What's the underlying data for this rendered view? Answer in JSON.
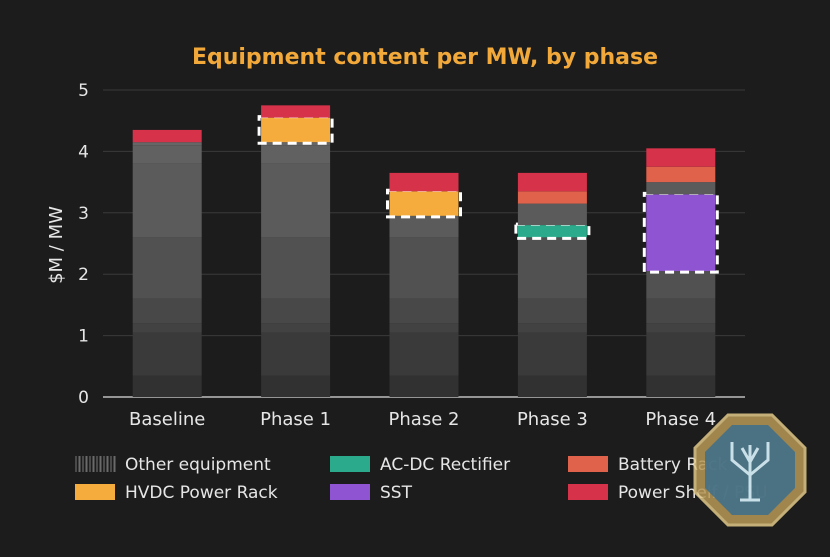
{
  "chart_data": {
    "type": "bar",
    "stacked": true,
    "title": "Equipment content per MW, by phase",
    "ylabel": "$M / MW",
    "xlabel": "",
    "ylim": [
      0,
      5
    ],
    "yticks": [
      "0",
      "1",
      "2",
      "3",
      "4",
      "5"
    ],
    "categories": [
      "Baseline",
      "Phase 1",
      "Phase 2",
      "Phase 3",
      "Phase 4"
    ],
    "grid": true,
    "legend_position": "bottom",
    "series": [
      {
        "name": "Other equipment",
        "color": "#5a5a5a",
        "values": [
          4.15,
          4.15,
          2.95,
          2.6,
          2.05
        ]
      },
      {
        "name": "AC-DC Rectifier",
        "color": "#2bab8c",
        "values": [
          0,
          0,
          0,
          0.2,
          0
        ]
      },
      {
        "name": "SST",
        "color": "#8e54d1",
        "values": [
          0,
          0,
          0,
          0,
          1.25
        ]
      },
      {
        "name": "HVDC Power Rack",
        "color": "#f5ac3d",
        "values": [
          0,
          0.4,
          0.4,
          0,
          0
        ]
      },
      {
        "name": "Other equipment",
        "color": "#5a5a5a",
        "values": [
          0,
          0,
          0,
          0.35,
          0.2
        ]
      },
      {
        "name": "Battery Rack",
        "color": "#e0624a",
        "values": [
          0,
          0,
          0,
          0.2,
          0.25
        ]
      },
      {
        "name": "Power Shelf / PSU",
        "color": "#d6324a",
        "values": [
          0.2,
          0.2,
          0.3,
          0.3,
          0.3
        ]
      }
    ],
    "highlighted_series": [
      "HVDC Power Rack",
      "AC-DC Rectifier",
      "SST"
    ],
    "legend": [
      {
        "name": "Other equipment",
        "color": "#5a5a5a"
      },
      {
        "name": "AC-DC Rectifier",
        "color": "#2bab8c"
      },
      {
        "name": "Battery Rack",
        "color": "#e0624a"
      },
      {
        "name": "HVDC Power Rack",
        "color": "#f5ac3d"
      },
      {
        "name": "SST",
        "color": "#8e54d1"
      },
      {
        "name": "Power Shelf / PSU",
        "color": "#d6324a"
      }
    ]
  },
  "colors": {
    "background": "#1c1c1c",
    "title": "#f2a93a",
    "text": "#e6e6e6",
    "grid": "#3a3a3a",
    "highlight_border": "#ffffff"
  },
  "watermark": {
    "icon": "tree-badge-icon"
  }
}
